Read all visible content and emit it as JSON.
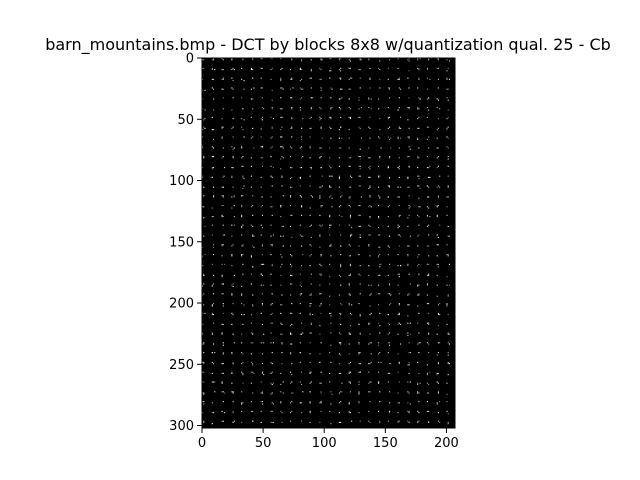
{
  "chart_data": {
    "type": "heatmap",
    "title": "barn_mountains.bmp - DCT by blocks 8x8  w/quantization qual. 25 - Cb",
    "xlabel": "",
    "ylabel": "",
    "image_size": {
      "width": 207,
      "height": 302
    },
    "block_size": 8,
    "xlim": [
      0,
      207
    ],
    "ylim": [
      302,
      0
    ],
    "x_ticks": [
      0,
      50,
      100,
      150,
      200
    ],
    "y_ticks": [
      0,
      50,
      100,
      150,
      200,
      250,
      300
    ],
    "colormap": "gray",
    "background_color": "#000000",
    "grid": false,
    "legend": "none"
  }
}
